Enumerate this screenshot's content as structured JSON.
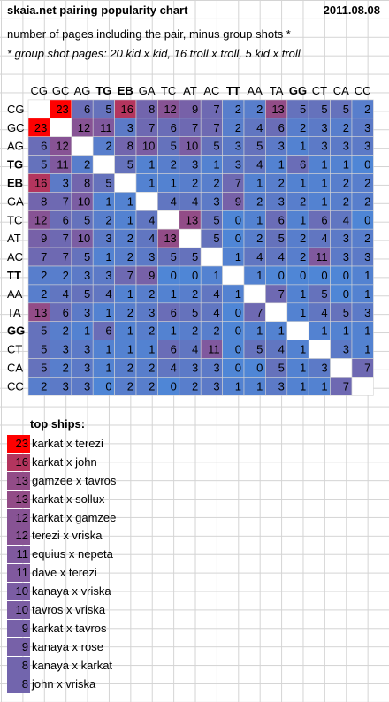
{
  "header": {
    "title": "skaia.net pairing popularity chart",
    "date": "2011.08.08",
    "subtitle": "number of pages including the pair, minus group shots *",
    "note": "* group shot pages: 20 kid x kid, 16 troll x troll, 5 kid x troll"
  },
  "colors": {
    "low": "#4f86d6",
    "mid": "#82579b",
    "high": "#ff0000",
    "grid": "#d4d4d4"
  },
  "chart_data": {
    "type": "heatmap",
    "title": "skaia.net pairing popularity chart",
    "labels": [
      "CG",
      "GC",
      "AG",
      "TG",
      "EB",
      "GA",
      "TC",
      "AT",
      "AC",
      "TT",
      "AA",
      "TA",
      "GG",
      "CT",
      "CA",
      "CC"
    ],
    "bold_labels": [
      "TG",
      "EB",
      "TT",
      "GG"
    ],
    "matrix": [
      [
        null,
        23,
        6,
        5,
        16,
        8,
        12,
        9,
        7,
        2,
        2,
        13,
        5,
        5,
        5,
        2
      ],
      [
        23,
        null,
        12,
        11,
        3,
        7,
        6,
        7,
        7,
        2,
        4,
        6,
        2,
        3,
        2,
        3
      ],
      [
        6,
        12,
        null,
        2,
        8,
        10,
        5,
        10,
        5,
        3,
        5,
        3,
        1,
        3,
        3,
        3
      ],
      [
        5,
        11,
        2,
        null,
        5,
        1,
        2,
        3,
        1,
        3,
        4,
        1,
        6,
        1,
        1,
        0
      ],
      [
        16,
        3,
        8,
        5,
        null,
        1,
        1,
        2,
        2,
        7,
        1,
        2,
        1,
        1,
        2,
        2
      ],
      [
        8,
        7,
        10,
        1,
        1,
        null,
        4,
        4,
        3,
        9,
        2,
        3,
        2,
        1,
        2,
        2
      ],
      [
        12,
        6,
        5,
        2,
        1,
        4,
        null,
        13,
        5,
        0,
        1,
        6,
        1,
        6,
        4,
        0
      ],
      [
        9,
        7,
        10,
        3,
        2,
        4,
        13,
        null,
        5,
        0,
        2,
        5,
        2,
        4,
        3,
        2
      ],
      [
        7,
        7,
        5,
        1,
        2,
        3,
        5,
        5,
        null,
        1,
        4,
        4,
        2,
        11,
        3,
        3
      ],
      [
        2,
        2,
        3,
        3,
        7,
        9,
        0,
        0,
        1,
        null,
        1,
        0,
        0,
        0,
        0,
        1
      ],
      [
        2,
        4,
        5,
        4,
        1,
        2,
        1,
        2,
        4,
        1,
        null,
        7,
        1,
        5,
        0,
        1
      ],
      [
        13,
        6,
        3,
        1,
        2,
        3,
        6,
        5,
        4,
        0,
        7,
        null,
        1,
        4,
        5,
        3
      ],
      [
        5,
        2,
        1,
        6,
        1,
        2,
        1,
        2,
        2,
        0,
        1,
        1,
        null,
        1,
        1,
        1
      ],
      [
        5,
        3,
        3,
        1,
        1,
        1,
        6,
        4,
        11,
        0,
        5,
        4,
        1,
        null,
        3,
        1
      ],
      [
        5,
        2,
        3,
        1,
        2,
        2,
        4,
        3,
        3,
        0,
        0,
        5,
        1,
        3,
        null,
        7
      ],
      [
        2,
        3,
        3,
        0,
        2,
        2,
        0,
        2,
        3,
        1,
        1,
        3,
        1,
        1,
        7,
        null
      ]
    ],
    "top_ships_title": "top ships:",
    "top_ships": [
      {
        "count": 23,
        "pair": "karkat x terezi"
      },
      {
        "count": 16,
        "pair": "karkat x john"
      },
      {
        "count": 13,
        "pair": "gamzee x tavros"
      },
      {
        "count": 13,
        "pair": "karkat x sollux"
      },
      {
        "count": 12,
        "pair": "karkat x gamzee"
      },
      {
        "count": 12,
        "pair": "terezi x vriska"
      },
      {
        "count": 11,
        "pair": "equius x nepeta"
      },
      {
        "count": 11,
        "pair": "dave x terezi"
      },
      {
        "count": 10,
        "pair": "kanaya x vriska"
      },
      {
        "count": 10,
        "pair": "tavros x vriska"
      },
      {
        "count": 9,
        "pair": "karkat x tavros"
      },
      {
        "count": 9,
        "pair": "kanaya x rose"
      },
      {
        "count": 8,
        "pair": "kanaya x karkat"
      },
      {
        "count": 8,
        "pair": "john x vriska"
      }
    ]
  }
}
